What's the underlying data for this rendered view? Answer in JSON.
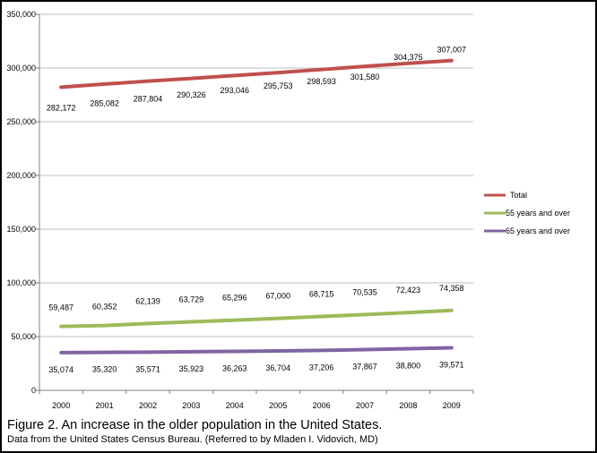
{
  "chart_data": {
    "type": "line",
    "categories": [
      "2000",
      "2001",
      "2002",
      "2003",
      "2004",
      "2005",
      "2006",
      "2007",
      "2008",
      "2009"
    ],
    "ylim": [
      0,
      350000
    ],
    "yticks": [
      0,
      50000,
      100000,
      150000,
      200000,
      250000,
      300000,
      350000
    ],
    "ytick_labels": [
      "0",
      "50,000",
      "100,000",
      "150,000",
      "200,000",
      "250,000",
      "300,000",
      "350,000"
    ],
    "grid": true,
    "legend_position": "right",
    "series": [
      {
        "name": "Total",
        "color": "#c0504d",
        "values": [
          282172,
          285082,
          287804,
          290326,
          293046,
          295753,
          298593,
          301580,
          304375,
          307007
        ],
        "labels": [
          "282,172",
          "285,082",
          "287,804",
          "290,326",
          "293,046",
          "295,753",
          "298,593",
          "301,580",
          "304,375",
          "307,007"
        ]
      },
      {
        "name": "55 years and over",
        "color": "#9bbb59",
        "values": [
          59487,
          60352,
          62139,
          63729,
          65296,
          67000,
          68715,
          70535,
          72423,
          74358
        ],
        "labels": [
          "59,487",
          "60,352",
          "62,139",
          "63,729",
          "65,296",
          "67,000",
          "68,715",
          "70,535",
          "72,423",
          "74,358"
        ]
      },
      {
        "name": "65 years and over",
        "color": "#8064a2",
        "values": [
          35074,
          35320,
          35571,
          35923,
          36263,
          36704,
          37206,
          37867,
          38800,
          39571
        ],
        "labels": [
          "35,074",
          "35,320",
          "35,571",
          "35,923",
          "36,263",
          "36,704",
          "37,206",
          "37,867",
          "38,800",
          "39,571"
        ]
      }
    ]
  },
  "caption": {
    "title": "Figure 2. An increase in the older population in the United States.",
    "subtitle": "Data from the United States Census Bureau. (Referred to by Mladen I. Vidovich, MD)"
  }
}
